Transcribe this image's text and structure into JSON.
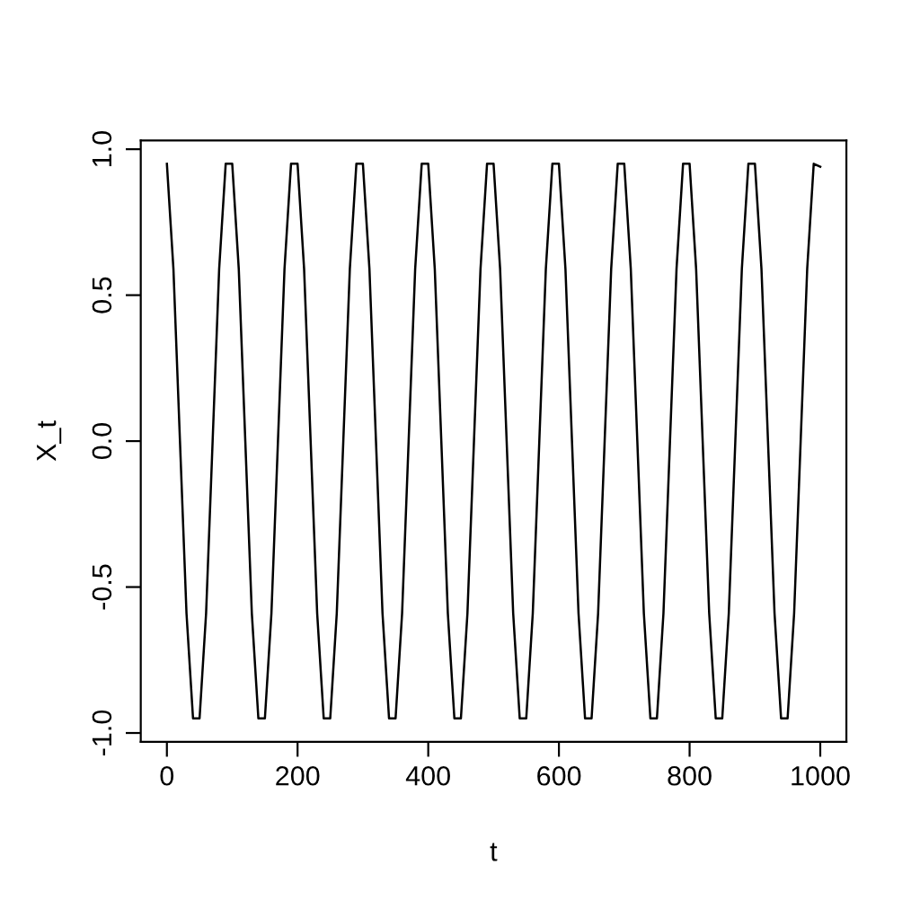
{
  "chart_data": {
    "type": "line",
    "xlabel": "t",
    "ylabel": "X_t",
    "x": [
      0,
      10,
      20,
      30,
      40,
      50,
      60,
      70,
      80,
      90,
      100,
      110,
      120,
      130,
      140,
      150,
      160,
      170,
      180,
      190,
      200,
      210,
      220,
      230,
      240,
      250,
      260,
      270,
      280,
      290,
      300,
      310,
      320,
      330,
      340,
      350,
      360,
      370,
      380,
      390,
      400,
      410,
      420,
      430,
      440,
      450,
      460,
      470,
      480,
      490,
      500,
      510,
      520,
      530,
      540,
      550,
      560,
      570,
      580,
      590,
      600,
      610,
      620,
      630,
      640,
      650,
      660,
      670,
      680,
      690,
      700,
      710,
      720,
      730,
      740,
      750,
      760,
      770,
      780,
      790,
      800,
      810,
      820,
      830,
      840,
      850,
      860,
      870,
      880,
      890,
      900,
      910,
      920,
      930,
      940,
      950,
      960,
      970,
      980,
      990,
      1000
    ],
    "series": [
      {
        "color": "#000000",
        "values": [
          0.95,
          0.59,
          0,
          -0.59,
          -0.95,
          -0.95,
          -0.59,
          0,
          0.59,
          0.95,
          0.95,
          0.59,
          0,
          -0.59,
          -0.95,
          -0.95,
          -0.59,
          0,
          0.59,
          0.95,
          0.95,
          0.59,
          0,
          -0.59,
          -0.95,
          -0.95,
          -0.59,
          0,
          0.59,
          0.95,
          0.95,
          0.59,
          0,
          -0.59,
          -0.95,
          -0.95,
          -0.59,
          0,
          0.59,
          0.95,
          0.95,
          0.59,
          0,
          -0.59,
          -0.95,
          -0.95,
          -0.59,
          0,
          0.59,
          0.95,
          0.95,
          0.59,
          0,
          -0.59,
          -0.95,
          -0.95,
          -0.59,
          0,
          0.59,
          0.95,
          0.95,
          0.59,
          0,
          -0.59,
          -0.95,
          -0.95,
          -0.59,
          0,
          0.59,
          0.95,
          0.95,
          0.59,
          0,
          -0.59,
          -0.95,
          -0.95,
          -0.59,
          0,
          0.59,
          0.95,
          0.95,
          0.59,
          0,
          -0.59,
          -0.95,
          -0.95,
          -0.59,
          0,
          0.59,
          0.95,
          0.95,
          0.59,
          0,
          -0.59,
          -0.95,
          -0.95,
          -0.59,
          0,
          0.59,
          0.95,
          0.94
        ]
      }
    ],
    "xlim": [
      -40,
      1040
    ],
    "xticks": [
      0,
      200,
      400,
      600,
      800,
      1000
    ],
    "ylim": [
      -1.03,
      1.03
    ],
    "yticks": [
      {
        "value": -1.0,
        "label": "-1.0"
      },
      {
        "value": -0.5,
        "label": "-0.5"
      },
      {
        "value": 0.0,
        "label": "0.0"
      },
      {
        "value": 0.5,
        "label": "0.5"
      },
      {
        "value": 1.0,
        "label": "1.0"
      }
    ],
    "grid": false,
    "legend": false,
    "marker": "none",
    "line_style": "solid"
  }
}
